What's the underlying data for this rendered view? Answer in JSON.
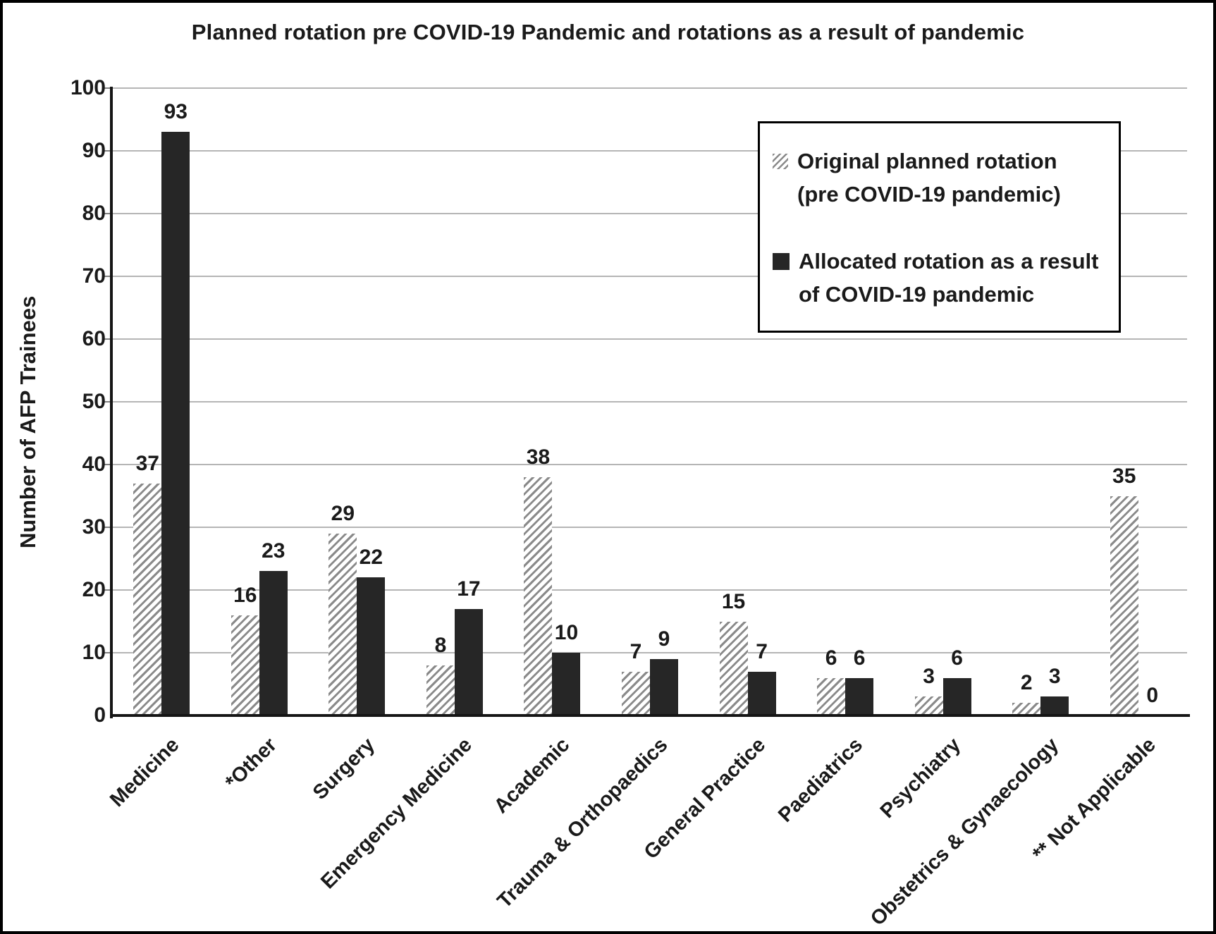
{
  "title": "Planned rotation pre COVID-19 Pandemic and rotations as a result of pandemic",
  "ylabel": "Number of AFP Trainees",
  "legend": {
    "planned": {
      "line1": "Original planned rotation",
      "line2": "(pre COVID-19 pandemic)"
    },
    "allocated": {
      "line1": "Allocated rotation as a result",
      "line2": "of COVID-19 pandemic"
    }
  },
  "colors": {
    "bar_dark": "#262626",
    "hatch_gray": "#8a8a8a",
    "gridline": "#b5b5b5",
    "axis": "#151515"
  },
  "chart_data": {
    "type": "bar",
    "title": "Planned rotation pre COVID-19 Pandemic and rotations as a result of pandemic",
    "xlabel": "",
    "ylabel": "Number of AFP Trainees",
    "ylim": [
      0,
      100
    ],
    "ytick_step": 10,
    "grid": true,
    "legend_position": "upper right",
    "categories": [
      "Medicine",
      "*Other",
      "Surgery",
      "Emergency Medicine",
      "Academic",
      "Trauma & Orthopaedics",
      "General Practice",
      "Paediatrics",
      "Psychiatry",
      "Obstetrics & Gynaecology",
      "** Not Applicable"
    ],
    "series": [
      {
        "name": "Original planned rotation (pre COVID-19 pandemic)",
        "style": "hatched",
        "values": [
          37,
          16,
          29,
          8,
          38,
          7,
          15,
          6,
          3,
          2,
          35
        ]
      },
      {
        "name": "Allocated rotation as a result of COVID-19 pandemic",
        "style": "solid",
        "values": [
          93,
          23,
          22,
          17,
          10,
          9,
          7,
          6,
          6,
          3,
          0
        ]
      }
    ]
  }
}
